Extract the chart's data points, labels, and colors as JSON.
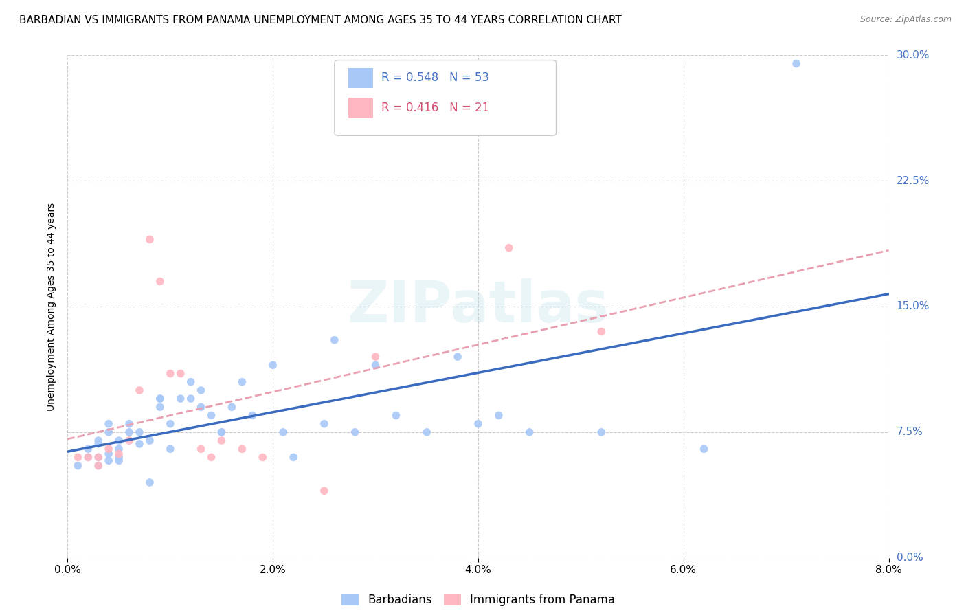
{
  "title": "BARBADIAN VS IMMIGRANTS FROM PANAMA UNEMPLOYMENT AMONG AGES 35 TO 44 YEARS CORRELATION CHART",
  "source": "Source: ZipAtlas.com",
  "xlabel_ticks": [
    "0.0%",
    "2.0%",
    "4.0%",
    "6.0%",
    "8.0%"
  ],
  "xlabel_vals": [
    0.0,
    0.02,
    0.04,
    0.06,
    0.08
  ],
  "ylabel_ticks": [
    "0.0%",
    "7.5%",
    "15.0%",
    "22.5%",
    "30.0%"
  ],
  "ylabel_vals": [
    0.0,
    0.075,
    0.15,
    0.225,
    0.3
  ],
  "ylabel_label": "Unemployment Among Ages 35 to 44 years",
  "xlim": [
    0.0,
    0.08
  ],
  "ylim": [
    0.0,
    0.3
  ],
  "barbadian_x": [
    0.001,
    0.002,
    0.002,
    0.003,
    0.003,
    0.003,
    0.003,
    0.004,
    0.004,
    0.004,
    0.004,
    0.005,
    0.005,
    0.005,
    0.005,
    0.006,
    0.006,
    0.007,
    0.007,
    0.008,
    0.008,
    0.009,
    0.009,
    0.009,
    0.01,
    0.01,
    0.011,
    0.012,
    0.012,
    0.013,
    0.013,
    0.014,
    0.015,
    0.015,
    0.016,
    0.017,
    0.018,
    0.02,
    0.021,
    0.022,
    0.025,
    0.026,
    0.028,
    0.03,
    0.032,
    0.035,
    0.038,
    0.04,
    0.042,
    0.045,
    0.052,
    0.062,
    0.071
  ],
  "barbadian_y": [
    0.055,
    0.065,
    0.06,
    0.055,
    0.06,
    0.07,
    0.068,
    0.058,
    0.062,
    0.075,
    0.08,
    0.058,
    0.06,
    0.065,
    0.07,
    0.075,
    0.08,
    0.068,
    0.075,
    0.045,
    0.07,
    0.09,
    0.095,
    0.095,
    0.065,
    0.08,
    0.095,
    0.105,
    0.095,
    0.09,
    0.1,
    0.085,
    0.075,
    0.075,
    0.09,
    0.105,
    0.085,
    0.115,
    0.075,
    0.06,
    0.08,
    0.13,
    0.075,
    0.115,
    0.085,
    0.075,
    0.12,
    0.08,
    0.085,
    0.075,
    0.075,
    0.065,
    0.295
  ],
  "panama_x": [
    0.001,
    0.002,
    0.003,
    0.003,
    0.004,
    0.005,
    0.006,
    0.007,
    0.008,
    0.009,
    0.01,
    0.011,
    0.013,
    0.014,
    0.015,
    0.017,
    0.019,
    0.025,
    0.03,
    0.043,
    0.052
  ],
  "panama_y": [
    0.06,
    0.06,
    0.055,
    0.06,
    0.065,
    0.062,
    0.07,
    0.1,
    0.19,
    0.165,
    0.11,
    0.11,
    0.065,
    0.06,
    0.07,
    0.065,
    0.06,
    0.04,
    0.12,
    0.185,
    0.135
  ],
  "barbadian_color": "#a8c8f8",
  "barbadian_line_color": "#3a6bbf",
  "panama_color": "#ffb6c1",
  "panama_line_color": "#e8a0b0",
  "R_barbadian": 0.548,
  "N_barbadian": 53,
  "R_panama": 0.416,
  "N_panama": 21,
  "marker_size": 70,
  "background_color": "#ffffff",
  "grid_color": "#cccccc",
  "watermark_text": "ZIPatlas",
  "title_fontsize": 11,
  "axis_label_fontsize": 10,
  "tick_fontsize": 11,
  "legend_fontsize": 12,
  "tick_color": "#4472c4"
}
